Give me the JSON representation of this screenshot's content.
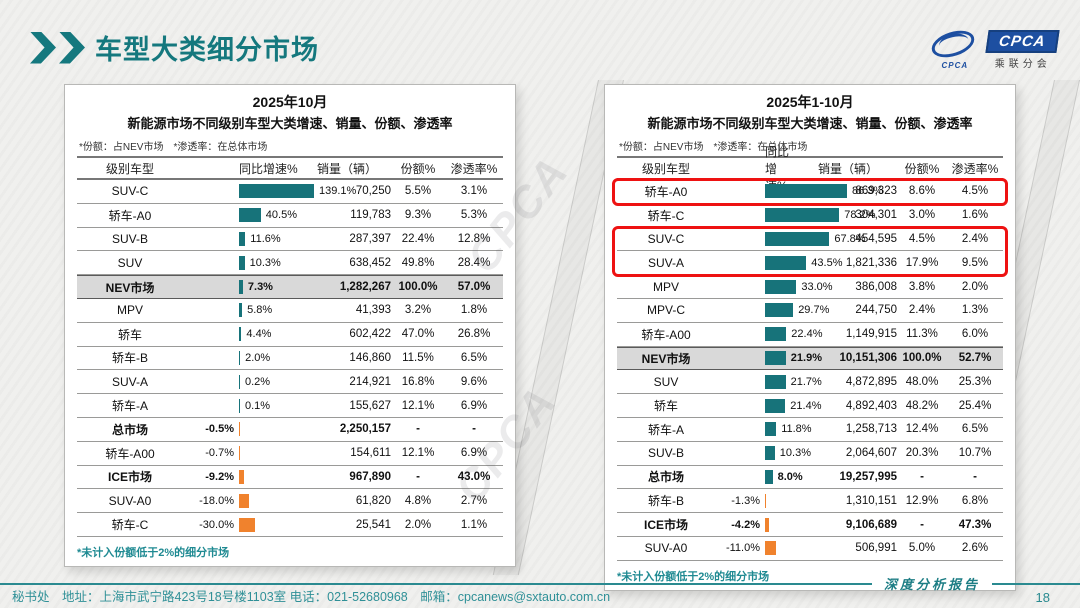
{
  "header": {
    "title": "车型大类细分市场",
    "logo_small": "CPCA",
    "logo_abbr": "CPCA",
    "logo_sub": "乘联分会",
    "watermark": "CPCA"
  },
  "footer": {
    "info": "秘书处　地址：上海市武宁路423号18号楼1103室 电话：021-52680968　邮箱：cpcanews@sxtauto.com.cn",
    "report_label": "深度分析报告",
    "page": "18"
  },
  "colors": {
    "teal_accent": "#15787e",
    "bar_positive": "#17737a",
    "bar_negative": "#f0822d",
    "highlight_box": "#ee1212",
    "shaded_row": "#d9d9d9",
    "logo_blue": "#1d4fa1"
  },
  "chart_data": [
    {
      "type": "table",
      "title": "2025年10月",
      "subtitle": "新能源市场不同级别车型大类增速、销量、份额、渗透率",
      "note": "*份额：占NEV市场　*渗透率：在总体市场",
      "columns": [
        "级别车型",
        "同比增速%",
        "销量（辆）",
        "份额%",
        "渗透率%"
      ],
      "footnote": "*未计入份额低于2%的细分市场",
      "growth_axis_max": 139.1,
      "rows": [
        {
          "name": "SUV-C",
          "growth_pct": 139.1,
          "sales": "70,250",
          "share": "5.5%",
          "penetration": "3.1%"
        },
        {
          "name": "轿车-A0",
          "growth_pct": 40.5,
          "sales": "119,783",
          "share": "9.3%",
          "penetration": "5.3%"
        },
        {
          "name": "SUV-B",
          "growth_pct": 11.6,
          "sales": "287,397",
          "share": "22.4%",
          "penetration": "12.8%"
        },
        {
          "name": "SUV",
          "growth_pct": 10.3,
          "sales": "638,452",
          "share": "49.8%",
          "penetration": "28.4%"
        },
        {
          "name": "NEV市场",
          "growth_pct": 7.3,
          "sales": "1,282,267",
          "share": "100.0%",
          "penetration": "57.0%",
          "emphasis": "shaded"
        },
        {
          "name": "MPV",
          "growth_pct": 5.8,
          "sales": "41,393",
          "share": "3.2%",
          "penetration": "1.8%"
        },
        {
          "name": "轿车",
          "growth_pct": 4.4,
          "sales": "602,422",
          "share": "47.0%",
          "penetration": "26.8%"
        },
        {
          "name": "轿车-B",
          "growth_pct": 2.0,
          "sales": "146,860",
          "share": "11.5%",
          "penetration": "6.5%"
        },
        {
          "name": "SUV-A",
          "growth_pct": 0.2,
          "sales": "214,921",
          "share": "16.8%",
          "penetration": "9.6%"
        },
        {
          "name": "轿车-A",
          "growth_pct": 0.1,
          "sales": "155,627",
          "share": "12.1%",
          "penetration": "6.9%"
        },
        {
          "name": "总市场",
          "growth_pct": -0.5,
          "sales": "2,250,157",
          "share": "-",
          "penetration": "-",
          "emphasis": "bold"
        },
        {
          "name": "轿车-A00",
          "growth_pct": -0.7,
          "sales": "154,611",
          "share": "12.1%",
          "penetration": "6.9%"
        },
        {
          "name": "ICE市场",
          "growth_pct": -9.2,
          "sales": "967,890",
          "share": "-",
          "penetration": "43.0%",
          "emphasis": "bold"
        },
        {
          "name": "SUV-A0",
          "growth_pct": -18.0,
          "sales": "61,820",
          "share": "4.8%",
          "penetration": "2.7%"
        },
        {
          "name": "轿车-C",
          "growth_pct": -30.0,
          "sales": "25,541",
          "share": "2.0%",
          "penetration": "1.1%"
        }
      ]
    },
    {
      "type": "table",
      "title": "2025年1-10月",
      "subtitle": "新能源市场不同级别车型大类增速、销量、份额、渗透率",
      "note": "*份额：占NEV市场　*渗透率：在总体市场",
      "columns": [
        "级别车型",
        "同比增速%",
        "销量（辆）",
        "份额%",
        "渗透率%"
      ],
      "footnote": "*未计入份额低于2%的细分市场",
      "growth_axis_max": 86.3,
      "rows": [
        {
          "name": "轿车-A0",
          "growth_pct": 86.3,
          "sales": "869,323",
          "share": "8.6%",
          "penetration": "4.5%",
          "red_box": 1
        },
        {
          "name": "轿车-C",
          "growth_pct": 78.2,
          "sales": "304,301",
          "share": "3.0%",
          "penetration": "1.6%"
        },
        {
          "name": "SUV-C",
          "growth_pct": 67.8,
          "sales": "454,595",
          "share": "4.5%",
          "penetration": "2.4%",
          "red_box": 2
        },
        {
          "name": "SUV-A",
          "growth_pct": 43.5,
          "sales": "1,821,336",
          "share": "17.9%",
          "penetration": "9.5%",
          "red_box": 2
        },
        {
          "name": "MPV",
          "growth_pct": 33.0,
          "sales": "386,008",
          "share": "3.8%",
          "penetration": "2.0%"
        },
        {
          "name": "MPV-C",
          "growth_pct": 29.7,
          "sales": "244,750",
          "share": "2.4%",
          "penetration": "1.3%"
        },
        {
          "name": "轿车-A00",
          "growth_pct": 22.4,
          "sales": "1,149,915",
          "share": "11.3%",
          "penetration": "6.0%"
        },
        {
          "name": "NEV市场",
          "growth_pct": 21.9,
          "sales": "10,151,306",
          "share": "100.0%",
          "penetration": "52.7%",
          "emphasis": "shaded"
        },
        {
          "name": "SUV",
          "growth_pct": 21.7,
          "sales": "4,872,895",
          "share": "48.0%",
          "penetration": "25.3%"
        },
        {
          "name": "轿车",
          "growth_pct": 21.4,
          "sales": "4,892,403",
          "share": "48.2%",
          "penetration": "25.4%"
        },
        {
          "name": "轿车-A",
          "growth_pct": 11.8,
          "sales": "1,258,713",
          "share": "12.4%",
          "penetration": "6.5%"
        },
        {
          "name": "SUV-B",
          "growth_pct": 10.3,
          "sales": "2,064,607",
          "share": "20.3%",
          "penetration": "10.7%"
        },
        {
          "name": "总市场",
          "growth_pct": 8.0,
          "sales": "19,257,995",
          "share": "-",
          "penetration": "-",
          "emphasis": "bold"
        },
        {
          "name": "轿车-B",
          "growth_pct": -1.3,
          "sales": "1,310,151",
          "share": "12.9%",
          "penetration": "6.8%"
        },
        {
          "name": "ICE市场",
          "growth_pct": -4.2,
          "sales": "9,106,689",
          "share": "-",
          "penetration": "47.3%",
          "emphasis": "bold"
        },
        {
          "name": "SUV-A0",
          "growth_pct": -11.0,
          "sales": "506,991",
          "share": "5.0%",
          "penetration": "2.6%"
        }
      ]
    }
  ]
}
